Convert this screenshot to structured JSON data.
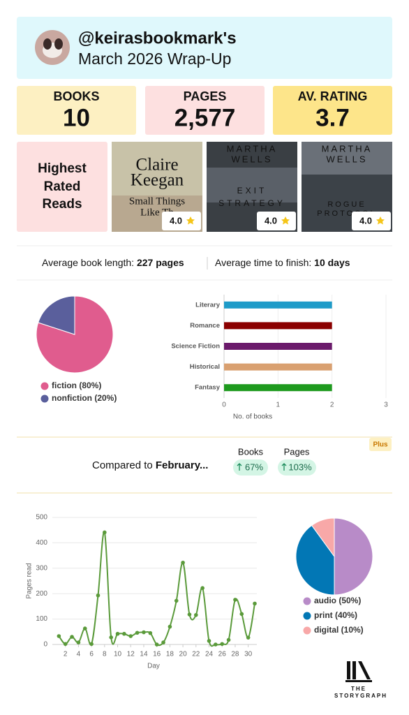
{
  "header": {
    "username": "@keirasbookmark's",
    "title": "March 2026 Wrap-Up"
  },
  "stats": [
    {
      "label": "BOOKS",
      "value": "10"
    },
    {
      "label": "PAGES",
      "value": "2,577"
    },
    {
      "label": "AV. RATING",
      "value": "3.7"
    }
  ],
  "highest_rated": {
    "title_lines": [
      "Highest",
      "Rated",
      "Reads"
    ],
    "books": [
      {
        "cover_lines": [
          "Claire",
          "Keegan",
          "Small Things",
          "Like Th"
        ],
        "rating": "4.0"
      },
      {
        "cover_lines": [
          "MARTHA",
          "WELLS",
          "EXIT",
          "STRATEGY"
        ],
        "rating": "4.0"
      },
      {
        "cover_lines": [
          "MARTHA",
          "WELLS",
          "ROGUE",
          "PROTOCOL"
        ],
        "rating": "4.0"
      }
    ]
  },
  "averages": {
    "length_label": "Average book length:",
    "length_value": "227 pages",
    "time_label": "Average time to finish:",
    "time_value": "10 days"
  },
  "comparison": {
    "badge": "Plus",
    "label": "Compared to",
    "month": "February...",
    "metrics": [
      {
        "label": "Books",
        "change": "67%"
      },
      {
        "label": "Pages",
        "change": "103%"
      }
    ]
  },
  "logo": {
    "line1": "THE",
    "line2": "STORYGRAPH"
  },
  "chart_data": [
    {
      "type": "pie",
      "categories": [
        "fiction (80%)",
        "nonfiction (20%)"
      ],
      "values": [
        80,
        20
      ],
      "colors": [
        "#e05c8e",
        "#5a5f9c"
      ]
    },
    {
      "type": "bar",
      "orientation": "horizontal",
      "categories": [
        "Literary",
        "Romance",
        "Science Fiction",
        "Historical",
        "Fantasy"
      ],
      "values": [
        2,
        2,
        2,
        2,
        2
      ],
      "colors": [
        "#1e9bc8",
        "#8b0000",
        "#6b1a6b",
        "#d9a070",
        "#1e9a1e"
      ],
      "xlim": [
        0,
        3
      ],
      "xticks": [
        0,
        1,
        2,
        3
      ],
      "xlabel": "No. of books",
      "grid": true
    },
    {
      "type": "line",
      "x": [
        1,
        2,
        3,
        4,
        5,
        6,
        7,
        8,
        9,
        10,
        11,
        12,
        13,
        14,
        15,
        16,
        17,
        18,
        19,
        20,
        21,
        22,
        23,
        24,
        25,
        26,
        27,
        28,
        29,
        30,
        31
      ],
      "values": [
        33,
        2,
        30,
        8,
        63,
        2,
        193,
        441,
        28,
        42,
        42,
        33,
        46,
        48,
        45,
        0,
        8,
        70,
        172,
        322,
        118,
        116,
        222,
        14,
        0,
        2,
        18,
        176,
        120,
        27,
        161
      ],
      "color": "#5a9a3a",
      "smooth": true,
      "xlim": [
        0,
        31
      ],
      "xticks": [
        2,
        4,
        6,
        8,
        10,
        12,
        14,
        16,
        18,
        20,
        22,
        24,
        26,
        28,
        30
      ],
      "ylim": [
        0,
        500
      ],
      "yticks": [
        0,
        100,
        200,
        300,
        400,
        500
      ],
      "xlabel": "Day",
      "ylabel": "Pages read",
      "grid": true
    },
    {
      "type": "pie",
      "categories": [
        "audio (50%)",
        "print (40%)",
        "digital (10%)"
      ],
      "values": [
        50,
        40,
        10
      ],
      "colors": [
        "#b88bc8",
        "#0277b5",
        "#f8a8a8"
      ]
    }
  ]
}
